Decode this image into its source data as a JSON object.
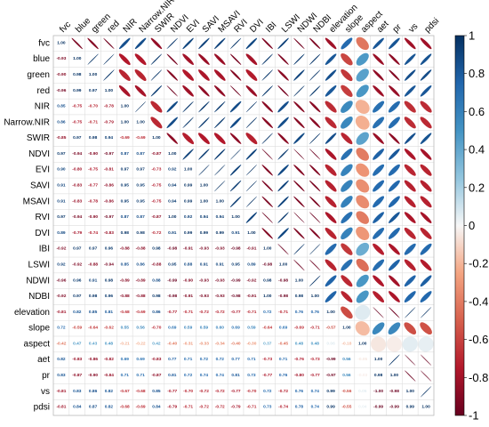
{
  "chart_data": {
    "type": "heatmap",
    "subtype": "correlation-matrix-mixed",
    "lower_method": "number",
    "upper_method": "ellipse",
    "diagonal": "number",
    "variables": [
      "fvc",
      "blue",
      "green",
      "red",
      "NIR",
      "Narrow.NIR",
      "SWIR",
      "NDVI",
      "EVI",
      "SAVI",
      "MSAVI",
      "RVI",
      "DVI",
      "IBI",
      "LSWI",
      "NDWI",
      "NDBI",
      "elevation",
      "slope",
      "aspect",
      "aet",
      "pr",
      "vs",
      "pdsi"
    ],
    "matrix": [
      [
        1.0,
        -0.93,
        -0.9,
        -0.96,
        0.85,
        0.86,
        -0.85,
        0.97,
        0.9,
        0.91,
        0.91,
        0.97,
        0.89,
        -0.92,
        0.92,
        -0.96,
        -0.92,
        -0.81,
        0.72,
        -0.42,
        0.82,
        0.83,
        -0.81,
        -0.81
      ],
      [
        -0.93,
        1.0,
        0.98,
        0.99,
        -0.75,
        -0.75,
        0.97,
        -0.94,
        -0.8,
        -0.83,
        -0.83,
        -0.94,
        -0.79,
        0.97,
        -0.92,
        0.96,
        0.97,
        0.82,
        -0.59,
        0.47,
        -0.83,
        -0.87,
        0.83,
        0.84
      ],
      [
        -0.9,
        0.98,
        1.0,
        0.97,
        -0.7,
        -0.71,
        0.98,
        -0.9,
        -0.75,
        -0.77,
        -0.78,
        -0.9,
        -0.74,
        0.97,
        -0.88,
        0.91,
        0.98,
        0.85,
        -0.64,
        0.43,
        -0.86,
        -0.9,
        0.86,
        0.87
      ],
      [
        -0.96,
        0.99,
        0.97,
        1.0,
        -0.78,
        -0.79,
        0.94,
        -0.97,
        -0.81,
        -0.86,
        -0.86,
        -0.97,
        -0.83,
        0.96,
        -0.94,
        0.98,
        0.96,
        0.81,
        -0.62,
        0.48,
        -0.82,
        -0.84,
        0.82,
        0.82
      ],
      [
        0.85,
        -0.75,
        -0.7,
        -0.78,
        1.0,
        1.0,
        -0.69,
        0.87,
        0.97,
        0.95,
        0.95,
        0.87,
        0.98,
        -0.88,
        0.85,
        -0.89,
        -0.88,
        -0.68,
        0.55,
        -0.21,
        0.69,
        0.71,
        -0.67,
        -0.68
      ],
      [
        0.86,
        -0.75,
        -0.71,
        -0.79,
        1.0,
        1.0,
        -0.69,
        0.87,
        0.97,
        0.95,
        0.95,
        0.87,
        0.98,
        -0.88,
        0.86,
        -0.89,
        -0.88,
        -0.69,
        0.56,
        -0.22,
        0.69,
        0.71,
        -0.68,
        -0.69
      ],
      [
        -0.85,
        0.97,
        0.98,
        0.94,
        -0.69,
        -0.69,
        1.0,
        -0.87,
        -0.73,
        -0.75,
        -0.75,
        -0.87,
        -0.72,
        0.98,
        -0.88,
        0.88,
        0.98,
        0.86,
        -0.7,
        0.42,
        -0.83,
        -0.87,
        0.85,
        0.84
      ],
      [
        0.97,
        -0.94,
        -0.9,
        -0.97,
        0.87,
        0.87,
        -0.87,
        1.0,
        0.92,
        0.94,
        0.94,
        1.0,
        0.91,
        -0.98,
        0.95,
        -0.99,
        -0.98,
        -0.77,
        0.69,
        -0.4,
        0.77,
        0.81,
        -0.77,
        -0.79
      ],
      [
        0.9,
        -0.8,
        -0.75,
        -0.81,
        0.97,
        0.97,
        -0.73,
        0.92,
        1.0,
        0.99,
        0.99,
        0.92,
        0.99,
        -0.91,
        0.88,
        -0.9,
        -0.91,
        -0.71,
        0.59,
        -0.31,
        0.71,
        0.72,
        -0.7,
        -0.71
      ],
      [
        0.91,
        -0.83,
        -0.77,
        -0.86,
        0.95,
        0.95,
        -0.75,
        0.94,
        0.99,
        1.0,
        1.0,
        0.94,
        0.99,
        -0.93,
        0.91,
        -0.93,
        -0.93,
        -0.72,
        0.59,
        -0.33,
        0.72,
        0.74,
        -0.72,
        -0.72
      ],
      [
        0.91,
        -0.83,
        -0.78,
        -0.86,
        0.95,
        0.95,
        -0.75,
        0.94,
        0.99,
        1.0,
        1.0,
        0.94,
        0.99,
        -0.93,
        0.91,
        -0.93,
        -0.93,
        -0.72,
        0.6,
        -0.34,
        0.72,
        0.74,
        -0.72,
        -0.72
      ],
      [
        0.97,
        -0.94,
        -0.9,
        -0.97,
        0.87,
        0.87,
        -0.87,
        1.0,
        0.92,
        0.94,
        0.94,
        1.0,
        0.91,
        -0.98,
        0.95,
        -0.99,
        -0.98,
        -0.77,
        0.69,
        -0.4,
        0.77,
        0.81,
        -0.77,
        -0.79
      ],
      [
        0.89,
        -0.79,
        -0.74,
        -0.83,
        0.98,
        0.98,
        -0.72,
        0.91,
        0.99,
        0.99,
        0.99,
        0.91,
        1.0,
        -0.91,
        0.89,
        -0.92,
        -0.91,
        -0.71,
        0.59,
        -0.3,
        0.71,
        0.73,
        -0.7,
        -0.71
      ],
      [
        -0.92,
        0.97,
        0.97,
        0.96,
        -0.88,
        -0.88,
        0.98,
        -0.98,
        -0.91,
        -0.93,
        -0.93,
        -0.98,
        -0.91,
        1.0,
        -0.98,
        0.98,
        1.0,
        0.72,
        -0.64,
        0.37,
        -0.73,
        -0.77,
        0.72,
        0.73
      ],
      [
        0.92,
        -0.92,
        -0.88,
        -0.94,
        0.85,
        0.86,
        -0.88,
        0.95,
        0.88,
        0.91,
        0.91,
        0.95,
        0.89,
        -0.98,
        1.0,
        -0.98,
        -0.98,
        -0.71,
        0.69,
        -0.45,
        0.71,
        0.76,
        -0.72,
        -0.74
      ],
      [
        -0.96,
        0.96,
        0.91,
        0.98,
        -0.89,
        -0.89,
        0.88,
        -0.99,
        -0.9,
        -0.93,
        -0.93,
        -0.99,
        -0.92,
        0.98,
        -0.98,
        1.0,
        0.98,
        0.76,
        -0.69,
        0.48,
        -0.76,
        -0.8,
        0.76,
        0.78
      ],
      [
        -0.92,
        0.97,
        0.98,
        0.96,
        -0.88,
        -0.88,
        0.98,
        -0.98,
        -0.91,
        -0.93,
        -0.93,
        -0.98,
        -0.91,
        1.0,
        -0.98,
        0.98,
        1.0,
        0.76,
        -0.71,
        0.48,
        -0.73,
        -0.77,
        0.74,
        0.74
      ],
      [
        -0.81,
        0.82,
        0.85,
        0.81,
        -0.68,
        -0.69,
        0.86,
        -0.77,
        -0.71,
        -0.72,
        -0.72,
        -0.77,
        -0.71,
        0.72,
        -0.71,
        0.76,
        0.76,
        1.0,
        -0.57,
        0.06,
        -0.99,
        -0.97,
        0.99,
        0.99
      ],
      [
        0.72,
        -0.59,
        -0.64,
        -0.62,
        0.55,
        0.56,
        -0.7,
        0.69,
        0.59,
        0.59,
        0.6,
        0.69,
        0.59,
        -0.64,
        0.69,
        -0.69,
        -0.71,
        -0.57,
        1.0,
        -0.18,
        0.56,
        0.56,
        -0.56,
        -0.55
      ],
      [
        -0.42,
        0.47,
        0.43,
        0.48,
        -0.21,
        -0.22,
        0.42,
        -0.4,
        -0.31,
        -0.33,
        -0.34,
        -0.4,
        -0.3,
        0.37,
        -0.45,
        0.48,
        0.48,
        0.06,
        -0.18,
        1.0,
        -0.05,
        -0.03,
        0.05,
        0.04
      ],
      [
        0.82,
        -0.83,
        -0.86,
        -0.82,
        0.69,
        0.69,
        -0.83,
        0.77,
        0.71,
        0.72,
        0.72,
        0.77,
        0.71,
        -0.73,
        0.71,
        -0.76,
        -0.73,
        -0.99,
        0.56,
        -0.05,
        1.0,
        0.98,
        -1.0,
        -0.99
      ],
      [
        0.83,
        -0.87,
        -0.9,
        -0.84,
        0.71,
        0.71,
        -0.87,
        0.81,
        0.72,
        0.74,
        0.74,
        0.81,
        0.73,
        -0.77,
        0.76,
        -0.8,
        -0.77,
        -0.97,
        0.56,
        -0.03,
        0.98,
        1.0,
        -0.98,
        -0.99
      ],
      [
        -0.81,
        0.83,
        0.86,
        0.82,
        -0.67,
        -0.68,
        0.85,
        -0.77,
        -0.7,
        -0.72,
        -0.72,
        -0.77,
        -0.7,
        0.72,
        -0.72,
        0.76,
        0.74,
        0.99,
        -0.56,
        0.05,
        -1.0,
        -0.98,
        1.0,
        0.99
      ],
      [
        -0.81,
        0.84,
        0.87,
        0.82,
        -0.68,
        -0.69,
        0.84,
        -0.79,
        -0.71,
        -0.72,
        -0.72,
        -0.79,
        -0.71,
        0.73,
        -0.74,
        0.78,
        0.74,
        0.99,
        -0.55,
        0.04,
        -0.99,
        -0.99,
        0.99,
        1.0
      ]
    ],
    "colorbar": {
      "ticks": [
        1,
        0.8,
        0.6,
        0.4,
        0.2,
        0,
        -0.2,
        -0.4,
        -0.6,
        -0.8,
        -1
      ],
      "range": [
        -1,
        1
      ],
      "placement": "right"
    },
    "colors": {
      "low": "#67001f",
      "neg": "#d6604d",
      "mid": "#f7f7f7",
      "pos": "#4393c3",
      "high": "#053061",
      "grid": "#dddddd"
    },
    "grid": true
  }
}
